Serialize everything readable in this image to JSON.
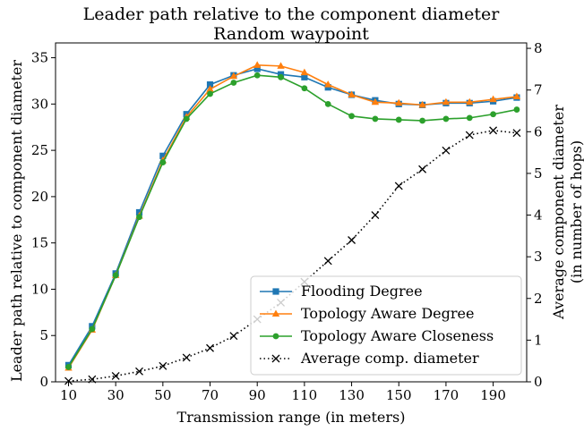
{
  "chart_data": {
    "type": "line",
    "title": "Leader path relative to the component diameter",
    "subtitle": "Random waypoint",
    "xlabel": "Transmission range (in meters)",
    "ylabel": "Leader path relative to component diameter",
    "y2label": [
      "Average component diameter",
      "(in number of hops)"
    ],
    "x": [
      10,
      20,
      30,
      40,
      50,
      60,
      70,
      80,
      90,
      100,
      110,
      120,
      130,
      140,
      150,
      160,
      170,
      180,
      190,
      200
    ],
    "xlim": [
      4.5,
      204.2
    ],
    "xticks": [
      10,
      30,
      50,
      70,
      90,
      110,
      130,
      150,
      170,
      190
    ],
    "ylim": [
      0,
      36.6
    ],
    "yticks": [
      0,
      5,
      10,
      15,
      20,
      25,
      30,
      35
    ],
    "y2lim": [
      0,
      8.13
    ],
    "y2ticks": [
      0,
      1,
      2,
      3,
      4,
      5,
      6,
      7,
      8
    ],
    "legend": "lower right",
    "series": [
      {
        "name": "Flooding Degree",
        "color": "#1f77b4",
        "marker": "square",
        "linestyle": "solid",
        "values": [
          1.8,
          6.0,
          11.7,
          18.3,
          24.4,
          28.9,
          32.1,
          33.1,
          33.8,
          33.2,
          32.9,
          31.8,
          31.0,
          30.4,
          30.0,
          29.9,
          30.1,
          30.1,
          30.3,
          30.7
        ]
      },
      {
        "name": "Topology Aware Degree",
        "color": "#ff7f0e",
        "marker": "triangle",
        "linestyle": "solid",
        "values": [
          1.5,
          5.6,
          11.5,
          17.9,
          23.9,
          28.6,
          31.6,
          33.0,
          34.2,
          34.1,
          33.4,
          32.1,
          31.0,
          30.2,
          30.1,
          29.9,
          30.2,
          30.2,
          30.5,
          30.8
        ]
      },
      {
        "name": "Topology Aware Closeness",
        "color": "#2ca02c",
        "marker": "circle",
        "linestyle": "solid",
        "values": [
          1.6,
          5.7,
          11.5,
          17.8,
          23.7,
          28.4,
          31.1,
          32.3,
          33.1,
          32.9,
          31.7,
          30.0,
          28.7,
          28.4,
          28.3,
          28.2,
          28.4,
          28.5,
          28.9,
          29.4
        ]
      },
      {
        "name": "Average comp. diameter",
        "color": "#000000",
        "marker": "x",
        "linestyle": "dotted",
        "axis": "y2",
        "values": [
          0.02,
          0.06,
          0.14,
          0.25,
          0.38,
          0.58,
          0.81,
          1.1,
          1.5,
          1.9,
          2.4,
          2.9,
          3.4,
          4.0,
          4.7,
          5.1,
          5.55,
          5.92,
          6.03,
          5.97
        ]
      }
    ]
  }
}
